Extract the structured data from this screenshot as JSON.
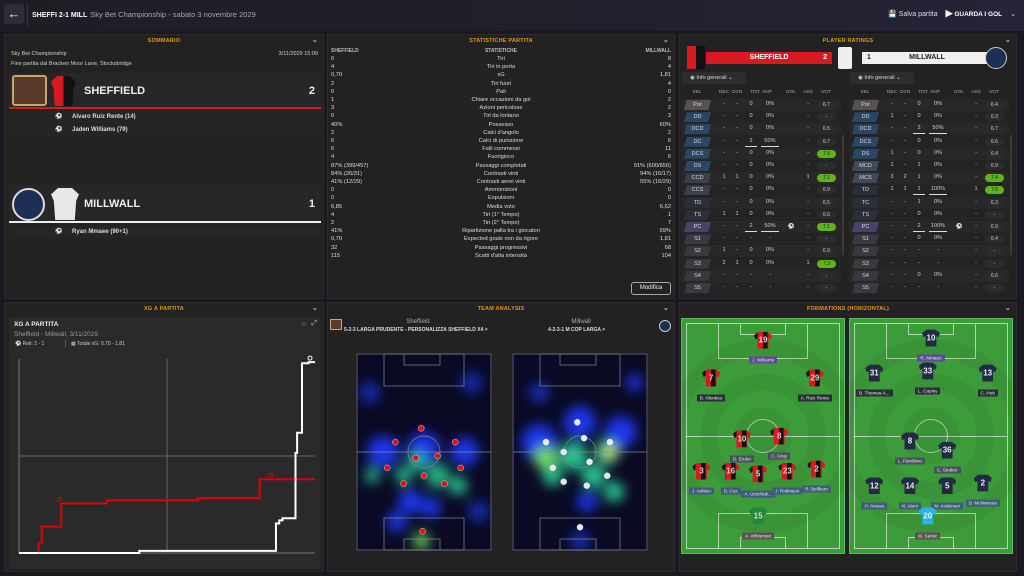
{
  "header": {
    "match": "SHEFFI 2-1 MILL",
    "subtitle": "Sky Bet Championship - sabato 3 novembre 2029",
    "save": "Salva partita",
    "watch": "GUARDA I GOL"
  },
  "summary": {
    "title": "SOMMARIO",
    "competition": "Sky Bet Championship",
    "datetime": "3/11/2029 15:00",
    "venue": "Fine partita dal Bracken Moor Lane, Stocksbridge",
    "home": {
      "name": "SHEFFIELD",
      "score": "2",
      "scorers": [
        "Alvaro Ruiz Rente (14)",
        "Jaden Williams (79)"
      ]
    },
    "away": {
      "name": "MILLWALL",
      "score": "1",
      "scorers": [
        "Ryan Mmaee (90+1)"
      ]
    }
  },
  "stats": {
    "title": "STATISTICHE PARTITA",
    "home_label": "SHEFFIELD",
    "center_label": "STATISTICHE",
    "away_label": "MILLWALL",
    "edit": "Modifica",
    "rows": [
      [
        "6",
        "Tiri",
        "8"
      ],
      [
        "4",
        "Tiri in porta",
        "4"
      ],
      [
        "0,70",
        "xG",
        "1,81"
      ],
      [
        "2",
        "Tiri fuori",
        "4"
      ],
      [
        "0",
        "Pali",
        "0"
      ],
      [
        "1",
        "Chiare occasioni da gol",
        "2"
      ],
      [
        "3",
        "Azioni pericolose",
        "2"
      ],
      [
        "0",
        "Tiri da lontano",
        "3"
      ],
      [
        "40%",
        "Possesso",
        "60%"
      ],
      [
        "2",
        "Calci d'angolo",
        "2"
      ],
      [
        "6",
        "Calci di punizione",
        "6"
      ],
      [
        "6",
        "Falli commessi",
        "11"
      ],
      [
        "4",
        "Fuorigioco",
        "6"
      ],
      [
        "87% (399/457)",
        "Passaggi completati",
        "91% (600/656)"
      ],
      [
        "84% (26/31)",
        "Contrasti vinti",
        "94% (16/17)"
      ],
      [
        "41% (12/29)",
        "Contrasti aerei vinti",
        "55% (16/29)"
      ],
      [
        "0",
        "Ammonizioni",
        "0"
      ],
      [
        "0",
        "Espulsioni",
        "0"
      ],
      [
        "6,85",
        "Media voto",
        "6,62"
      ],
      [
        "4",
        "Tiri (1° Tempo)",
        "1"
      ],
      [
        "2",
        "Tiri (2° Tempo)",
        "7"
      ],
      [
        "41%",
        "Ripartizione palla tra i giocatori",
        "59%"
      ],
      [
        "0,70",
        "Expected goals non da rigore",
        "1,81"
      ],
      [
        "32",
        "Passaggi progressivi",
        "68"
      ],
      [
        "115",
        "Scatti d'alta intensità",
        "104"
      ]
    ]
  },
  "ratings": {
    "title": "PLAYER RATINGS",
    "filter": "Info generali",
    "columns": [
      "SEL",
      "DEC",
      "OCN",
      "TNT",
      "VNP",
      "GOL",
      "ASS",
      "VOT"
    ],
    "home": {
      "name": "SHEFFIELD",
      "score": "2",
      "rows": [
        [
          "Por",
          "-",
          "-",
          "0",
          "0%",
          "",
          "-",
          "6.7"
        ],
        [
          "DD",
          "-",
          "-",
          "0",
          "0%",
          "",
          "-",
          "-"
        ],
        [
          "DCD",
          "-",
          "-",
          "0",
          "0%",
          "",
          "-",
          "6.5"
        ],
        [
          "DC",
          "-",
          "-",
          "2",
          "50%",
          "",
          "-",
          "6.7"
        ],
        [
          "DCS",
          "-",
          "-",
          "0",
          "0%",
          "",
          "-",
          "7.0"
        ],
        [
          "DS",
          "-",
          "-",
          "0",
          "0%",
          "",
          "-",
          "-"
        ],
        [
          "CCD",
          "1",
          "1",
          "0",
          "0%",
          "",
          "1",
          "7.1"
        ],
        [
          "CCS",
          "-",
          "-",
          "0",
          "0%",
          "",
          "-",
          "6.9"
        ],
        [
          "TD",
          "-",
          "-",
          "0",
          "0%",
          "",
          "-",
          "6.5"
        ],
        [
          "TS",
          "1",
          "1",
          "0",
          "0%",
          "",
          "-",
          "6.6"
        ],
        [
          "PC",
          "-",
          "-",
          "2",
          "50%",
          "ball",
          "-",
          "7.1"
        ],
        [
          "S1",
          "-",
          "-",
          "-",
          "-",
          "",
          "-",
          "-"
        ],
        [
          "S2",
          "1",
          "-",
          "0",
          "0%",
          "",
          "-",
          "6.9"
        ],
        [
          "S3",
          "2",
          "1",
          "0",
          "0%",
          "",
          "1",
          "7.3"
        ],
        [
          "S4",
          "-",
          "-",
          "-",
          "-",
          "",
          "-",
          "-"
        ],
        [
          "S5",
          "-",
          "-",
          "-",
          "-",
          "",
          "-",
          "-"
        ]
      ]
    },
    "away": {
      "name": "MILLWALL",
      "score": "1",
      "rows": [
        [
          "Por",
          "-",
          "-",
          "0",
          "0%",
          "",
          "-",
          "6.4"
        ],
        [
          "DD",
          "1",
          "-",
          "0",
          "0%",
          "",
          "-",
          "6.3"
        ],
        [
          "DCD",
          "-",
          "-",
          "2",
          "50%",
          "",
          "-",
          "6.7"
        ],
        [
          "DCS",
          "-",
          "-",
          "0",
          "0%",
          "",
          "-",
          "6.6"
        ],
        [
          "DS",
          "1",
          "-",
          "0",
          "0%",
          "",
          "-",
          "6.4"
        ],
        [
          "MCD",
          "1",
          "-",
          "1",
          "0%",
          "",
          "-",
          "6.9"
        ],
        [
          "MCS",
          "3",
          "2",
          "1",
          "0%",
          "",
          "-",
          "7.4"
        ],
        [
          "TD",
          "1",
          "1",
          "1",
          "100%",
          "",
          "1",
          "7.6"
        ],
        [
          "TC",
          "-",
          "-",
          "1",
          "0%",
          "",
          "-",
          "6.3"
        ],
        [
          "TS",
          "-",
          "-",
          "0",
          "0%",
          "",
          "-",
          "-"
        ],
        [
          "PC",
          "-",
          "-",
          "2",
          "100%",
          "ball",
          "-",
          "6.9"
        ],
        [
          "S1",
          "-",
          "-",
          "0",
          "0%",
          "",
          "-",
          "6.4"
        ],
        [
          "S2",
          "-",
          "-",
          "-",
          "-",
          "",
          "-",
          "-"
        ],
        [
          "S3",
          "-",
          "-",
          "-",
          "-",
          "",
          "-",
          "-"
        ],
        [
          "S4",
          "-",
          "-",
          "0",
          "0%",
          "",
          "-",
          "6.6"
        ],
        [
          "S5",
          "-",
          "-",
          "-",
          "-",
          "",
          "-",
          "-"
        ]
      ]
    }
  },
  "xg": {
    "title": "XG A PARTITA",
    "card_title": "XG A PARTITA",
    "match": "Sheffield - Millwall, 3/11/2029",
    "goals": "Reti: 2 - 1",
    "total": "Totale xG: 0.70 - 1.81"
  },
  "chart_data": {
    "type": "line",
    "xlim": [
      0,
      91
    ],
    "ylim": [
      0,
      1.84
    ],
    "grid": true,
    "colors": {
      "home": "#e00000",
      "away": "#ffffff"
    },
    "series": [
      {
        "team": "home",
        "x": [
          0,
          6,
          6,
          7,
          13,
          27,
          55,
          74,
          91
        ],
        "y": [
          0,
          0,
          0.09,
          0.25,
          0.47,
          0.5,
          0.52,
          0.7,
          0.7
        ],
        "goals": [
          14,
          79
        ]
      },
      {
        "team": "away",
        "x": [
          0,
          37,
          79,
          80,
          81,
          85,
          85.5,
          87,
          89,
          91
        ],
        "y": [
          0,
          0.02,
          0.28,
          0.31,
          0.33,
          0.95,
          1.14,
          1.8,
          1.81,
          1.81
        ],
        "goals": [
          91
        ]
      }
    ]
  },
  "analysis": {
    "title": "TEAM ANALYSIS",
    "home": "Sheffield",
    "home_tactic": "5-2-3 LARGA PRUDENTE - PERSONALIZZA SHEFFIELD X4 >",
    "away": "Millwall",
    "away_tactic": "4-2-3-1 M COP LARGA >"
  },
  "formations": {
    "title": "FORMATIONS (HORIZONTAL)",
    "home": [
      [
        "19",
        "J. Williams"
      ],
      [
        "7",
        "B. Nlonkeu"
      ],
      [
        "29",
        "A. Ruiz Rente"
      ],
      [
        "10",
        "D. Ender"
      ],
      [
        "8",
        "C. Gray"
      ],
      [
        "3",
        "J. Ashton"
      ],
      [
        "16",
        "D. Cox"
      ],
      [
        "5",
        "A. Uzochuk..."
      ],
      [
        "23",
        "J. Robinson"
      ],
      [
        "2",
        "R. Bellhum"
      ],
      [
        "15",
        "A. Whiteman"
      ]
    ],
    "away": [
      [
        "10",
        "R. Mmaee"
      ],
      [
        "31",
        "B. Thomas-A..."
      ],
      [
        "33",
        "L. Copley"
      ],
      [
        "13",
        "C. Hett"
      ],
      [
        "8",
        "L. Fiorditino"
      ],
      [
        "36",
        "C. Straker"
      ],
      [
        "12",
        "H. Amass"
      ],
      [
        "14",
        "N. Atom"
      ],
      [
        "5",
        "M. Andersen"
      ],
      [
        "2",
        "D. McNamara"
      ],
      [
        "20",
        "M. Sarkic"
      ]
    ]
  },
  "colors": {
    "accent": "#e0961d",
    "home": "#d71920",
    "good_rating": "#5fb31e"
  }
}
